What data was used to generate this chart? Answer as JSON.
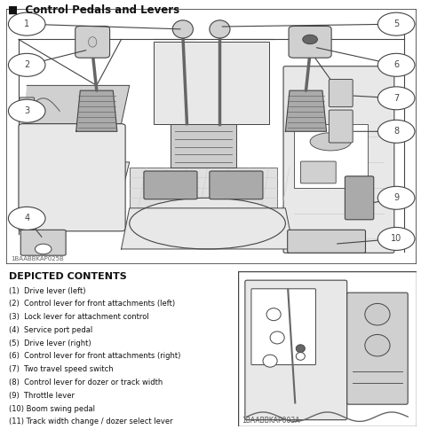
{
  "title": "Control Pedals and Levers",
  "title_marker": "■",
  "code_top": "1BAABBKAP025B",
  "code_bottom": "1BAABBKAP003A",
  "depicted_contents_title": "DEPICTED CONTENTS",
  "items": [
    "(1)  Drive lever (left)",
    "(2)  Control lever for front attachments (left)",
    "(3)  Lock lever for attachment control",
    "(4)  Service port pedal",
    "(5)  Drive lever (right)",
    "(6)  Control lever for front attachments (right)",
    "(7)  Two travel speed switch",
    "(8)  Control lever for dozer or track width",
    "(9)  Throttle lever",
    "(10) Boom swing pedal",
    "(11) Track width change / dozer select lever"
  ],
  "bg_color": "#ffffff",
  "line_color": "#444444",
  "dark_gray": "#666666",
  "mid_gray": "#999999",
  "light_gray": "#cccccc",
  "fill_light": "#e8e8e8",
  "fill_mid": "#d0d0d0",
  "fill_dark": "#aaaaaa",
  "text_color": "#111111"
}
